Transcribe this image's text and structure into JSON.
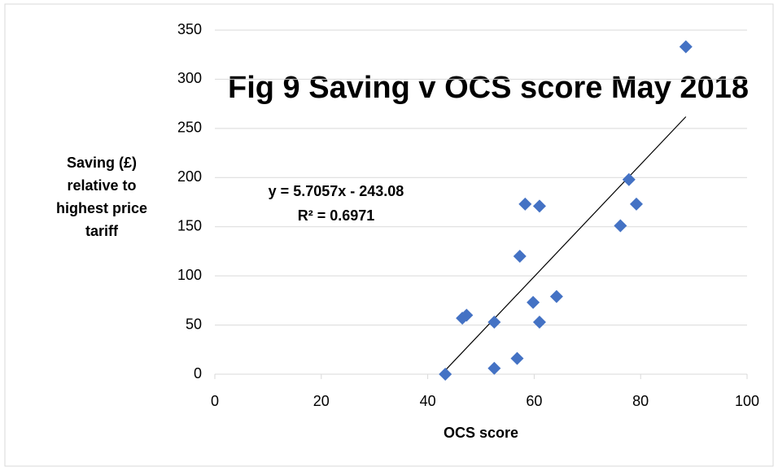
{
  "chart_data": {
    "type": "scatter",
    "title": "Fig 9 Saving v OCS score May 2018",
    "x_label": "OCS score",
    "y_label": [
      "Saving (£)",
      "relative to",
      "highest price",
      "tariff"
    ],
    "x": [
      43.3,
      46.5,
      47.3,
      52.5,
      52.5,
      56.8,
      57.3,
      58.3,
      59.8,
      61,
      61,
      64.2,
      76.2,
      77.8,
      79.2,
      88.5
    ],
    "series": [
      {
        "color": "#4472c4",
        "values": [
          0,
          57,
          60,
          53,
          6,
          16,
          120,
          173,
          73,
          53,
          171,
          79,
          151,
          198,
          173,
          333
        ]
      }
    ],
    "trendline": {
      "slope": 5.7057,
      "intercept": -243.08,
      "color": "#000000",
      "equation": "y = 5.7057x - 243.08",
      "r_squared": "R² = 0.6971"
    },
    "xlim": [
      0,
      100
    ],
    "xticks": [
      0,
      20,
      40,
      60,
      80,
      100
    ],
    "ylim": [
      0,
      350
    ],
    "yticks": [
      0,
      50,
      100,
      150,
      200,
      250,
      300,
      350
    ],
    "grid": true
  }
}
